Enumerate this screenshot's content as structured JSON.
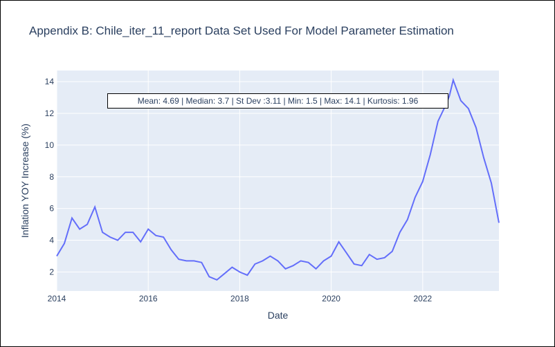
{
  "chart_data": {
    "type": "line",
    "title": "Appendix B: Chile_iter_11_report Data Set Used For Model Parameter Estimation",
    "xlabel": "Date",
    "ylabel": "Inflation YOY Increase (%)",
    "annotation": "Mean: 4.69 | Median: 3.7 | St Dev :3.11 | Min: 1.5 | Max: 14.1 | Kurtosis: 1.96",
    "xlim": [
      "2014-01",
      "2023-09"
    ],
    "ylim": [
      0.8,
      14.7
    ],
    "x_tick_labels": [
      "2014",
      "2016",
      "2018",
      "2020",
      "2022"
    ],
    "y_tick_labels": [
      "2",
      "4",
      "6",
      "8",
      "10",
      "12",
      "14"
    ],
    "grid": true,
    "line_color": "#636efa",
    "plot_bgcolor": "#e5ecf6",
    "series": [
      {
        "x": [
          "2014-01",
          "2014-03",
          "2014-05",
          "2014-07",
          "2014-09",
          "2014-11",
          "2015-01",
          "2015-03",
          "2015-05",
          "2015-07",
          "2015-09",
          "2015-11",
          "2016-01",
          "2016-03",
          "2016-05",
          "2016-07",
          "2016-09",
          "2016-11",
          "2017-01",
          "2017-03",
          "2017-05",
          "2017-07",
          "2017-09",
          "2017-11",
          "2018-01",
          "2018-03",
          "2018-05",
          "2018-07",
          "2018-09",
          "2018-11",
          "2019-01",
          "2019-03",
          "2019-05",
          "2019-07",
          "2019-09",
          "2019-11",
          "2020-01",
          "2020-03",
          "2020-05",
          "2020-07",
          "2020-09",
          "2020-11",
          "2021-01",
          "2021-03",
          "2021-05",
          "2021-07",
          "2021-09",
          "2021-11",
          "2022-01",
          "2022-03",
          "2022-05",
          "2022-07",
          "2022-08",
          "2022-09",
          "2022-11",
          "2023-01",
          "2023-03",
          "2023-05",
          "2023-07",
          "2023-09"
        ],
        "y": [
          3.0,
          3.8,
          5.4,
          4.7,
          5.0,
          6.1,
          4.5,
          4.2,
          4.0,
          4.5,
          4.5,
          3.9,
          4.7,
          4.3,
          4.2,
          3.4,
          2.8,
          2.7,
          2.7,
          2.6,
          1.7,
          1.5,
          1.9,
          2.3,
          2.0,
          1.8,
          2.5,
          2.7,
          3.0,
          2.7,
          2.2,
          2.4,
          2.7,
          2.6,
          2.2,
          2.7,
          3.0,
          3.9,
          3.2,
          2.5,
          2.4,
          3.1,
          2.8,
          2.9,
          3.3,
          4.5,
          5.3,
          6.7,
          7.7,
          9.4,
          11.5,
          12.5,
          13.1,
          14.1,
          12.8,
          12.3,
          11.1,
          9.2,
          7.6,
          5.1
        ]
      }
    ]
  }
}
